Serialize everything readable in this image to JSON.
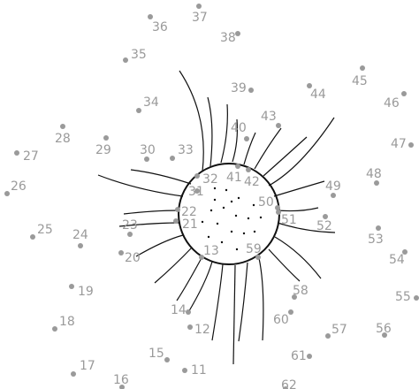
{
  "points": [
    {
      "label": "11"
    },
    {
      "label": "12"
    },
    {
      "label": "13"
    },
    {
      "label": "14"
    },
    {
      "label": "15"
    },
    {
      "label": "16"
    },
    {
      "label": "17"
    },
    {
      "label": "18"
    },
    {
      "label": "19"
    },
    {
      "label": "20"
    },
    {
      "label": "21"
    },
    {
      "label": "22"
    },
    {
      "label": "23"
    },
    {
      "label": "24"
    },
    {
      "label": "25"
    },
    {
      "label": "26"
    },
    {
      "label": "27"
    },
    {
      "label": "28"
    },
    {
      "label": "29"
    },
    {
      "label": "30"
    },
    {
      "label": "31"
    },
    {
      "label": "32"
    },
    {
      "label": "33"
    },
    {
      "label": "34"
    },
    {
      "label": "35"
    },
    {
      "label": "36"
    },
    {
      "label": "37"
    },
    {
      "label": "38"
    },
    {
      "label": "39"
    },
    {
      "label": "40"
    },
    {
      "label": "41"
    },
    {
      "label": "42"
    },
    {
      "label": "43"
    },
    {
      "label": "44"
    },
    {
      "label": "45"
    },
    {
      "label": "46"
    },
    {
      "label": "47"
    },
    {
      "label": "48"
    },
    {
      "label": "49"
    },
    {
      "label": "50"
    },
    {
      "label": "51"
    },
    {
      "label": "52"
    },
    {
      "label": "53"
    },
    {
      "label": "54"
    },
    {
      "label": "55"
    },
    {
      "label": "56"
    },
    {
      "label": "57"
    },
    {
      "label": "58"
    },
    {
      "label": "59"
    },
    {
      "label": "60"
    },
    {
      "label": "61"
    },
    {
      "label": "62"
    }
  ],
  "colors": {
    "dots": "#9a9a9a",
    "lines": "#111111",
    "background": "#ffffff"
  }
}
